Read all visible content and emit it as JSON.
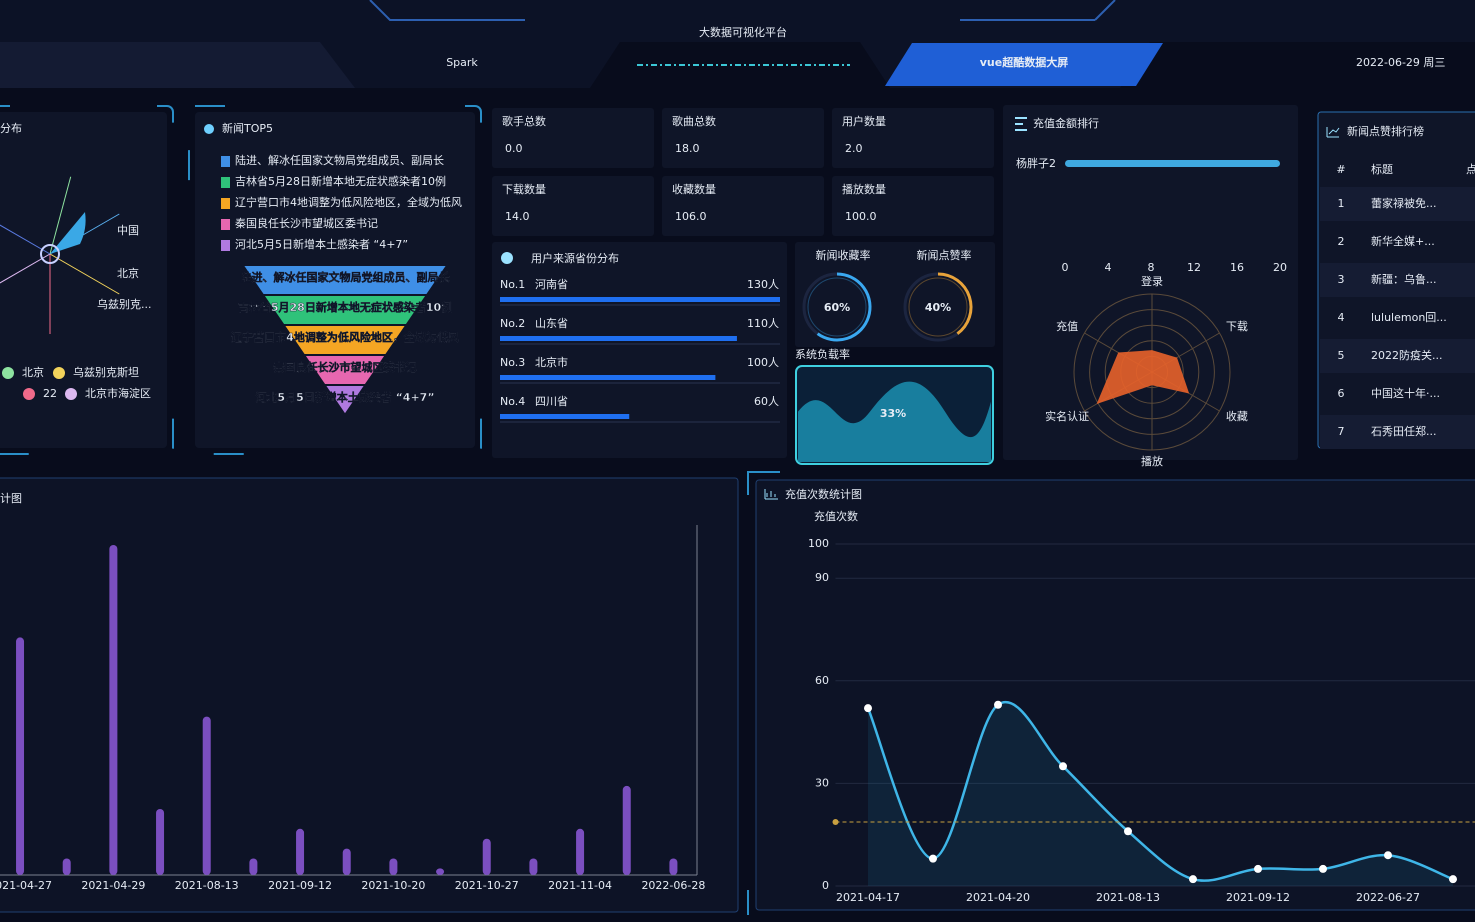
{
  "header": {
    "title": "大数据可视化平台",
    "left_tab": "Spark",
    "right_tab": "vue超酷数据大屏",
    "datetime": "2022-06-29 周三"
  },
  "region": {
    "title": "分布",
    "labels": [
      "中国",
      "北京",
      "乌兹别克..."
    ],
    "legend": [
      "北京",
      "乌兹别克斯坦",
      "22",
      "北京市海淀区"
    ],
    "legend_colors": [
      "#8ee3a0",
      "#f2d35b",
      "#f06a8a",
      "#dcb8f0"
    ]
  },
  "news_top5": {
    "title": "新闻TOP5",
    "items": [
      "陆进、解冰任国家文物局党组成员、副局长",
      "吉林省5月28日新增本地无症状感染者10例",
      "辽宁营口市4地调整为低风险地区，全域为低风",
      "秦国良任长沙市望城区委书记",
      "河北5月5日新增本土感染者 “4+7”"
    ],
    "colors": [
      "#3f8fe6",
      "#2fc27a",
      "#f5a623",
      "#e667b0",
      "#b07ae0"
    ]
  },
  "stats": [
    {
      "label": "歌手总数",
      "value": "0.0"
    },
    {
      "label": "歌曲总数",
      "value": "18.0"
    },
    {
      "label": "用户数量",
      "value": "2.0"
    },
    {
      "label": "下载数量",
      "value": "14.0"
    },
    {
      "label": "收藏数量",
      "value": "106.0"
    },
    {
      "label": "播放数量",
      "value": "100.0"
    }
  ],
  "province": {
    "title": "用户来源省份分布",
    "ranks": [
      "No.1",
      "No.2",
      "No.3",
      "No.4"
    ],
    "names": [
      "河南省",
      "山东省",
      "北京市",
      "四川省"
    ],
    "values": [
      130,
      110,
      100,
      60
    ],
    "value_labels": [
      "130人",
      "110人",
      "100人",
      "60人"
    ],
    "color": "#1f6ff0"
  },
  "rates": [
    {
      "title": "新闻收藏率",
      "value": 60,
      "value_label": "60%",
      "color": "#3aa8f0"
    },
    {
      "title": "新闻点赞率",
      "value": 40,
      "value_label": "40%",
      "color": "#e8a33a"
    }
  ],
  "load": {
    "title": "系统负载率",
    "value": 33,
    "value_label": "33%"
  },
  "recharge_rank": {
    "type": "bar",
    "title": "充值金额排行",
    "categories": [
      "杨胖子2"
    ],
    "values": [
      20
    ],
    "xlim": [
      0,
      20
    ],
    "xticks": [
      0,
      4,
      8,
      12,
      16,
      20
    ],
    "color": "#3fa9e0"
  },
  "radar": {
    "type": "radar",
    "indicators": [
      "登录",
      "下载",
      "收藏",
      "播放",
      "实名认证",
      "充值"
    ],
    "values": [
      28,
      37,
      55,
      17,
      82,
      50
    ],
    "rlim": [
      0,
      100
    ],
    "color": "#e8622a"
  },
  "news_likes": {
    "title": "新闻点赞排行榜",
    "columns": [
      "#",
      "标题",
      "点"
    ],
    "rows": [
      [
        "1",
        "蕾家禄被免..."
      ],
      [
        "2",
        "新华全媒+..."
      ],
      [
        "3",
        "新疆：乌鲁..."
      ],
      [
        "4",
        "lululemon回..."
      ],
      [
        "5",
        "2022防疫关..."
      ],
      [
        "6",
        "中国这十年·..."
      ],
      [
        "7",
        "石秀田任郑..."
      ]
    ]
  },
  "play_chart": {
    "type": "bar",
    "title": "计图",
    "categories": [
      "2021-04-27",
      null,
      "2021-04-29",
      null,
      "2021-08-13",
      null,
      "2021-09-12",
      null,
      "2021-10-20",
      null,
      "2021-10-27",
      null,
      "2021-11-04",
      null,
      "2022-06-28"
    ],
    "values": [
      72,
      5,
      100,
      20,
      48,
      5,
      14,
      8,
      5,
      2,
      11,
      5,
      14,
      27,
      5
    ],
    "ylim": [
      0,
      100
    ],
    "color": "#7b4fc0"
  },
  "recharge_count": {
    "type": "line",
    "title": "充值次数统计图",
    "y_label": "充值次数",
    "categories": [
      "2021-04-17",
      null,
      "2021-04-20",
      null,
      "2021-08-13",
      null,
      "2021-09-12",
      null,
      "2022-06-27",
      null
    ],
    "values": [
      52,
      8,
      53,
      35,
      16,
      2,
      5,
      5,
      9,
      2
    ],
    "ylim": [
      0,
      100
    ],
    "yticks": [
      0,
      30,
      60,
      90,
      100
    ],
    "mark_line": 18.7,
    "color": "#3fb6e8"
  }
}
